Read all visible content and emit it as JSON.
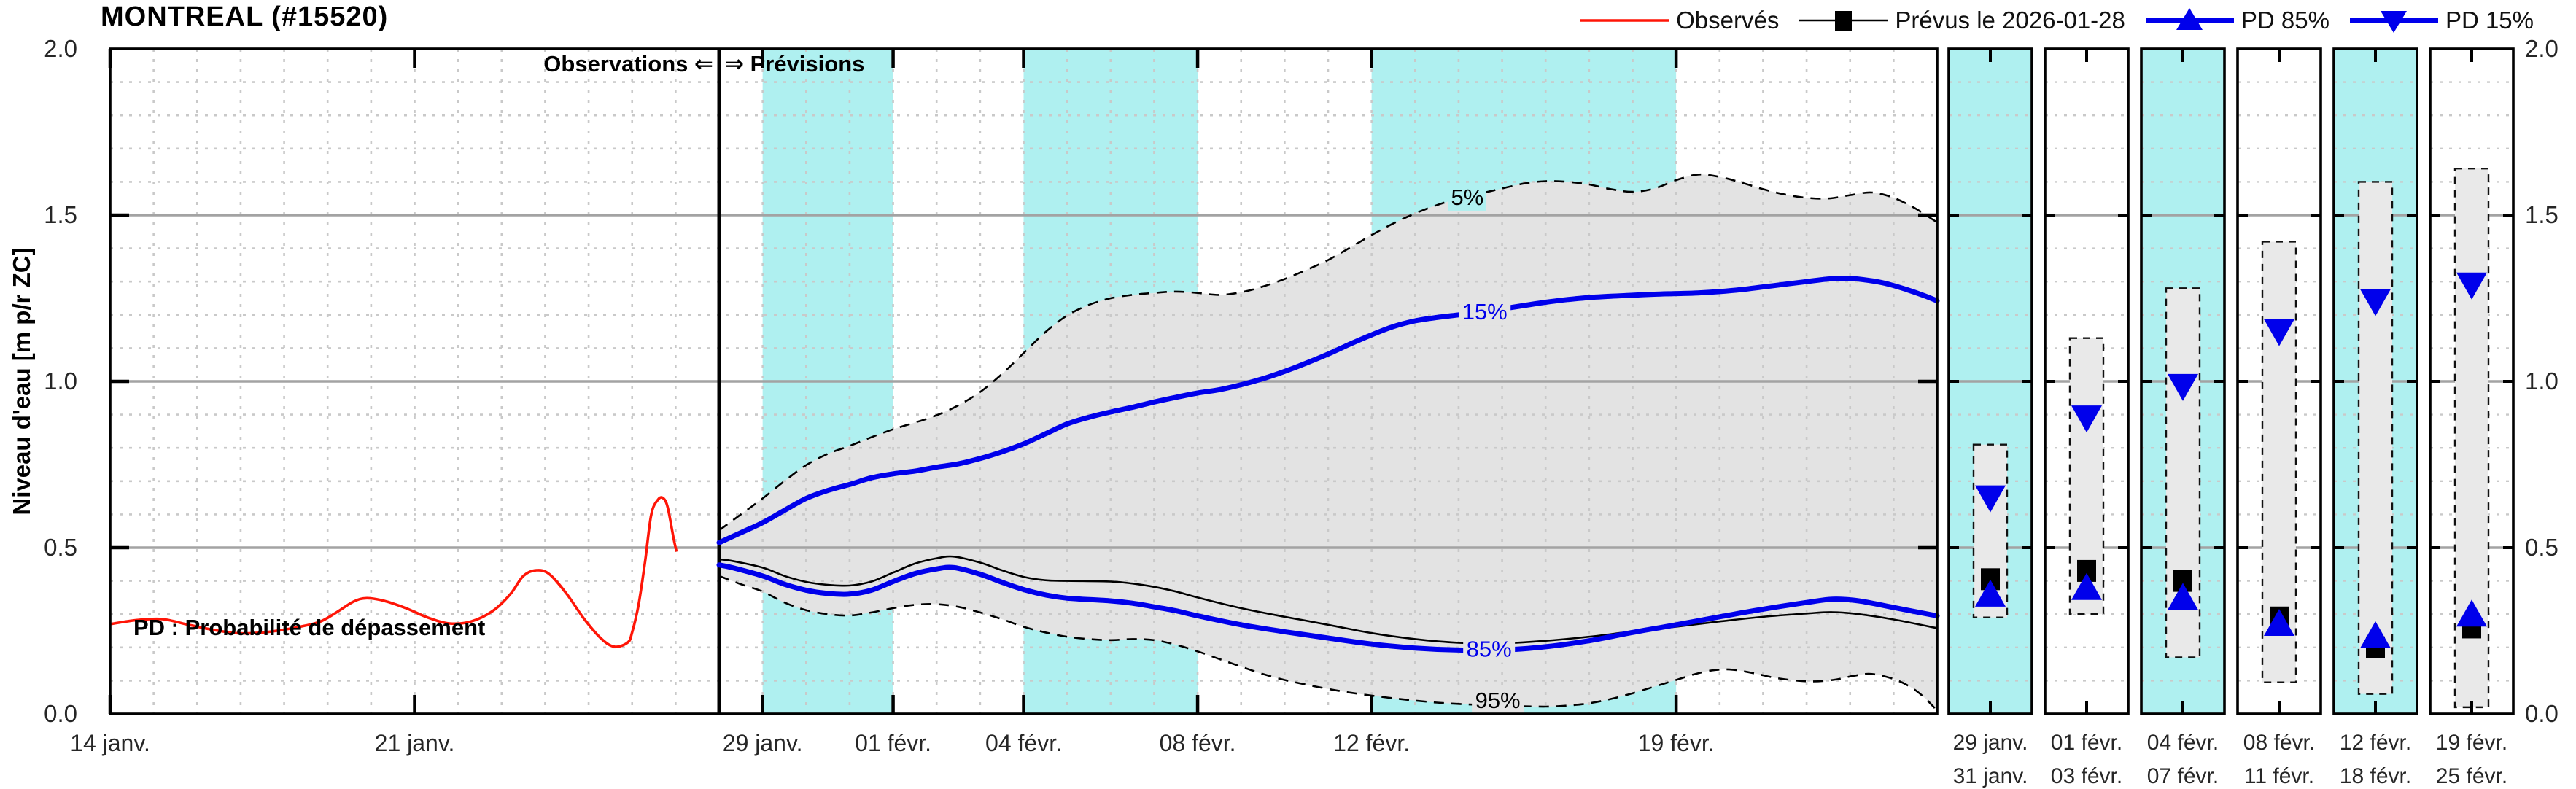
{
  "title": "MONTREAL (#15520)",
  "legend": [
    {
      "label": "Observés",
      "color": "#ff1507",
      "marker": "none"
    },
    {
      "label": "Prévus le 2026-01-28",
      "color": "#000000",
      "marker": "square"
    },
    {
      "label": "PD 85%",
      "color": "#0000eb",
      "marker": "triangle-up"
    },
    {
      "label": "PD 15%",
      "color": "#0000eb",
      "marker": "triangle-down"
    }
  ],
  "annotations": {
    "observations": "Observations ⇐",
    "previsions": "⇒ Prévisions",
    "pd_note": "PD : Probabilité de dépassement"
  },
  "colors": {
    "observed": "#ff1507",
    "forecast_blue": "#0000eb",
    "median": "#000000",
    "band_fill": "#e3e3e3",
    "cyan": "#aff0f0",
    "box_fill": "#e9e9e9",
    "grid_major": "#a3a3a3",
    "grid_minor": "#c9c9c9",
    "frame": "#000000",
    "text": "#262626"
  },
  "chart_data": {
    "type": "line",
    "title": "MONTREAL (#15520)",
    "xlabel": "",
    "ylabel": "Niveau d'eau [m p/r ZC]",
    "ylim": [
      0.0,
      2.0
    ],
    "y_major_ticks": [
      0.0,
      0.5,
      1.0,
      1.5,
      2.0
    ],
    "y_tick_labels": [
      "0.0",
      "0.5",
      "1.0",
      "1.5",
      "2.0"
    ],
    "y_minor_step": 0.1,
    "x_unit": "days since 14 janv.",
    "x_range_days": [
      0,
      42
    ],
    "divider_day": 14,
    "x_ticks": [
      {
        "day": 0,
        "label": "14 janv."
      },
      {
        "day": 7,
        "label": "21 janv."
      },
      {
        "day": 15,
        "label": "29 janv."
      },
      {
        "day": 18,
        "label": "01 févr."
      },
      {
        "day": 21,
        "label": "04 févr."
      },
      {
        "day": 25,
        "label": "08 févr."
      },
      {
        "day": 29,
        "label": "12 févr."
      },
      {
        "day": 36,
        "label": "19 févr."
      }
    ],
    "cyan_bands_days": [
      [
        15,
        18
      ],
      [
        21,
        25
      ],
      [
        29,
        36
      ]
    ],
    "inline_labels": [
      {
        "text": "5%",
        "day": 31.2,
        "value": 1.555,
        "color": "#000000",
        "bg": "#aff0f0"
      },
      {
        "text": "15%",
        "day": 31.6,
        "value": 1.21,
        "color": "#0000eb",
        "bg": "#e3e3e3"
      },
      {
        "text": "85%",
        "day": 31.7,
        "value": 0.196,
        "color": "#0000eb",
        "bg": "#e3e3e3"
      },
      {
        "text": "95%",
        "day": 31.9,
        "value": 0.042,
        "color": "#000000",
        "bg": "#e3e3e3"
      }
    ],
    "series": {
      "observed": [
        [
          0,
          0.27
        ],
        [
          0.6,
          0.282
        ],
        [
          1.2,
          0.285
        ],
        [
          1.8,
          0.268
        ],
        [
          2.4,
          0.252
        ],
        [
          3.0,
          0.242
        ],
        [
          3.6,
          0.246
        ],
        [
          4.2,
          0.258
        ],
        [
          4.8,
          0.276
        ],
        [
          5.2,
          0.305
        ],
        [
          5.6,
          0.338
        ],
        [
          5.9,
          0.348
        ],
        [
          6.3,
          0.34
        ],
        [
          6.8,
          0.318
        ],
        [
          7.3,
          0.29
        ],
        [
          7.8,
          0.272
        ],
        [
          8.3,
          0.278
        ],
        [
          8.8,
          0.31
        ],
        [
          9.2,
          0.36
        ],
        [
          9.5,
          0.415
        ],
        [
          9.8,
          0.432
        ],
        [
          10.1,
          0.42
        ],
        [
          10.5,
          0.36
        ],
        [
          10.9,
          0.285
        ],
        [
          11.3,
          0.225
        ],
        [
          11.6,
          0.202
        ],
        [
          11.9,
          0.215
        ],
        [
          12.0,
          0.245
        ],
        [
          12.15,
          0.33
        ],
        [
          12.3,
          0.46
        ],
        [
          12.44,
          0.6
        ],
        [
          12.6,
          0.645
        ],
        [
          12.72,
          0.648
        ],
        [
          12.82,
          0.62
        ],
        [
          12.95,
          0.53
        ],
        [
          13.02,
          0.488
        ]
      ],
      "forecast_median": [
        [
          14,
          0.465
        ],
        [
          14.3,
          0.46
        ],
        [
          15,
          0.44
        ],
        [
          15.5,
          0.415
        ],
        [
          16,
          0.397
        ],
        [
          16.5,
          0.388
        ],
        [
          17,
          0.386
        ],
        [
          17.5,
          0.398
        ],
        [
          18,
          0.425
        ],
        [
          18.5,
          0.452
        ],
        [
          19,
          0.468
        ],
        [
          19.4,
          0.473
        ],
        [
          20,
          0.455
        ],
        [
          20.5,
          0.432
        ],
        [
          21,
          0.412
        ],
        [
          21.5,
          0.402
        ],
        [
          22,
          0.4
        ],
        [
          23,
          0.398
        ],
        [
          23.5,
          0.392
        ],
        [
          24,
          0.382
        ],
        [
          24.5,
          0.368
        ],
        [
          25,
          0.35
        ],
        [
          26,
          0.318
        ],
        [
          27,
          0.292
        ],
        [
          28,
          0.268
        ],
        [
          29,
          0.243
        ],
        [
          30,
          0.225
        ],
        [
          31,
          0.214
        ],
        [
          32,
          0.212
        ],
        [
          33,
          0.22
        ],
        [
          34,
          0.232
        ],
        [
          35,
          0.248
        ],
        [
          36,
          0.262
        ],
        [
          37,
          0.278
        ],
        [
          38,
          0.292
        ],
        [
          39,
          0.302
        ],
        [
          39.6,
          0.306
        ],
        [
          40.2,
          0.3
        ],
        [
          41,
          0.284
        ],
        [
          42,
          0.258
        ]
      ],
      "p5": [
        [
          14,
          0.552
        ],
        [
          14.5,
          0.6
        ],
        [
          15,
          0.648
        ],
        [
          15.5,
          0.7
        ],
        [
          16,
          0.748
        ],
        [
          16.5,
          0.782
        ],
        [
          17,
          0.806
        ],
        [
          17.5,
          0.832
        ],
        [
          18,
          0.856
        ],
        [
          18.5,
          0.876
        ],
        [
          19,
          0.898
        ],
        [
          19.5,
          0.928
        ],
        [
          20,
          0.968
        ],
        [
          20.5,
          1.022
        ],
        [
          21,
          1.085
        ],
        [
          21.5,
          1.148
        ],
        [
          22,
          1.198
        ],
        [
          22.5,
          1.23
        ],
        [
          23,
          1.25
        ],
        [
          23.5,
          1.26
        ],
        [
          24,
          1.266
        ],
        [
          24.5,
          1.27
        ],
        [
          25,
          1.266
        ],
        [
          25.5,
          1.26
        ],
        [
          26,
          1.268
        ],
        [
          26.5,
          1.285
        ],
        [
          27,
          1.308
        ],
        [
          27.5,
          1.335
        ],
        [
          28,
          1.365
        ],
        [
          28.5,
          1.402
        ],
        [
          29,
          1.44
        ],
        [
          29.5,
          1.475
        ],
        [
          30,
          1.505
        ],
        [
          30.5,
          1.53
        ],
        [
          31,
          1.55
        ],
        [
          31.5,
          1.565
        ],
        [
          32,
          1.58
        ],
        [
          32.5,
          1.595
        ],
        [
          33,
          1.602
        ],
        [
          33.5,
          1.6
        ],
        [
          34,
          1.592
        ],
        [
          34.5,
          1.578
        ],
        [
          35,
          1.57
        ],
        [
          35.5,
          1.58
        ],
        [
          36,
          1.605
        ],
        [
          36.5,
          1.622
        ],
        [
          37,
          1.615
        ],
        [
          37.5,
          1.598
        ],
        [
          38,
          1.578
        ],
        [
          38.5,
          1.562
        ],
        [
          39,
          1.552
        ],
        [
          39.5,
          1.55
        ],
        [
          40,
          1.56
        ],
        [
          40.5,
          1.568
        ],
        [
          41,
          1.552
        ],
        [
          41.5,
          1.52
        ],
        [
          42,
          1.478
        ]
      ],
      "p15": [
        [
          14,
          0.515
        ],
        [
          14.5,
          0.545
        ],
        [
          15,
          0.575
        ],
        [
          15.5,
          0.612
        ],
        [
          16,
          0.648
        ],
        [
          16.5,
          0.672
        ],
        [
          17,
          0.69
        ],
        [
          17.5,
          0.71
        ],
        [
          18,
          0.722
        ],
        [
          18.5,
          0.73
        ],
        [
          19,
          0.742
        ],
        [
          19.5,
          0.752
        ],
        [
          20,
          0.768
        ],
        [
          20.5,
          0.788
        ],
        [
          21,
          0.812
        ],
        [
          21.5,
          0.842
        ],
        [
          22,
          0.872
        ],
        [
          22.5,
          0.892
        ],
        [
          23,
          0.908
        ],
        [
          23.5,
          0.922
        ],
        [
          24,
          0.938
        ],
        [
          24.5,
          0.952
        ],
        [
          25,
          0.965
        ],
        [
          25.5,
          0.975
        ],
        [
          26,
          0.99
        ],
        [
          26.5,
          1.008
        ],
        [
          27,
          1.03
        ],
        [
          27.5,
          1.055
        ],
        [
          28,
          1.082
        ],
        [
          28.5,
          1.112
        ],
        [
          29,
          1.14
        ],
        [
          29.5,
          1.165
        ],
        [
          30,
          1.182
        ],
        [
          30.5,
          1.192
        ],
        [
          31,
          1.2
        ],
        [
          31.5,
          1.208
        ],
        [
          32,
          1.218
        ],
        [
          32.5,
          1.228
        ],
        [
          33,
          1.238
        ],
        [
          33.5,
          1.246
        ],
        [
          34,
          1.252
        ],
        [
          34.5,
          1.256
        ],
        [
          35,
          1.259
        ],
        [
          35.5,
          1.262
        ],
        [
          36,
          1.264
        ],
        [
          36.5,
          1.266
        ],
        [
          37,
          1.27
        ],
        [
          37.5,
          1.276
        ],
        [
          38,
          1.284
        ],
        [
          38.5,
          1.292
        ],
        [
          39,
          1.3
        ],
        [
          39.5,
          1.308
        ],
        [
          39.9,
          1.31
        ],
        [
          40.3,
          1.306
        ],
        [
          40.8,
          1.295
        ],
        [
          41.3,
          1.276
        ],
        [
          41.7,
          1.258
        ],
        [
          42,
          1.242
        ]
      ],
      "p85": [
        [
          14,
          0.448
        ],
        [
          14.3,
          0.44
        ],
        [
          15,
          0.415
        ],
        [
          15.5,
          0.39
        ],
        [
          16,
          0.372
        ],
        [
          16.5,
          0.362
        ],
        [
          17,
          0.36
        ],
        [
          17.5,
          0.372
        ],
        [
          18,
          0.398
        ],
        [
          18.5,
          0.422
        ],
        [
          19,
          0.436
        ],
        [
          19.4,
          0.44
        ],
        [
          20,
          0.42
        ],
        [
          20.5,
          0.396
        ],
        [
          21,
          0.374
        ],
        [
          21.5,
          0.358
        ],
        [
          22,
          0.348
        ],
        [
          23,
          0.34
        ],
        [
          23.5,
          0.333
        ],
        [
          24,
          0.322
        ],
        [
          24.5,
          0.31
        ],
        [
          25,
          0.295
        ],
        [
          26,
          0.268
        ],
        [
          27,
          0.247
        ],
        [
          28,
          0.228
        ],
        [
          29,
          0.21
        ],
        [
          30,
          0.198
        ],
        [
          31,
          0.192
        ],
        [
          32,
          0.192
        ],
        [
          33,
          0.202
        ],
        [
          34,
          0.22
        ],
        [
          35,
          0.245
        ],
        [
          36,
          0.268
        ],
        [
          37,
          0.292
        ],
        [
          38,
          0.315
        ],
        [
          39,
          0.335
        ],
        [
          39.6,
          0.345
        ],
        [
          40.2,
          0.34
        ],
        [
          41,
          0.32
        ],
        [
          42,
          0.295
        ]
      ],
      "p95": [
        [
          14,
          0.415
        ],
        [
          14.5,
          0.39
        ],
        [
          15,
          0.368
        ],
        [
          15.5,
          0.335
        ],
        [
          16,
          0.312
        ],
        [
          16.5,
          0.3
        ],
        [
          17,
          0.296
        ],
        [
          17.5,
          0.305
        ],
        [
          18,
          0.318
        ],
        [
          18.5,
          0.328
        ],
        [
          19,
          0.33
        ],
        [
          19.5,
          0.322
        ],
        [
          20,
          0.305
        ],
        [
          20.5,
          0.285
        ],
        [
          21,
          0.262
        ],
        [
          21.5,
          0.245
        ],
        [
          22,
          0.232
        ],
        [
          22.5,
          0.225
        ],
        [
          23,
          0.222
        ],
        [
          23.5,
          0.225
        ],
        [
          24,
          0.222
        ],
        [
          24.5,
          0.208
        ],
        [
          25,
          0.188
        ],
        [
          25.5,
          0.165
        ],
        [
          26,
          0.142
        ],
        [
          26.5,
          0.12
        ],
        [
          27,
          0.102
        ],
        [
          27.5,
          0.088
        ],
        [
          28,
          0.075
        ],
        [
          28.5,
          0.064
        ],
        [
          29,
          0.055
        ],
        [
          29.5,
          0.047
        ],
        [
          30,
          0.04
        ],
        [
          30.5,
          0.034
        ],
        [
          31,
          0.03
        ],
        [
          31.5,
          0.027
        ],
        [
          32,
          0.025
        ],
        [
          32.5,
          0.023
        ],
        [
          33,
          0.022
        ],
        [
          33.5,
          0.025
        ],
        [
          34,
          0.032
        ],
        [
          34.5,
          0.045
        ],
        [
          35,
          0.062
        ],
        [
          35.5,
          0.082
        ],
        [
          36,
          0.102
        ],
        [
          36.5,
          0.122
        ],
        [
          36.9,
          0.132
        ],
        [
          37.3,
          0.133
        ],
        [
          37.8,
          0.122
        ],
        [
          38.3,
          0.108
        ],
        [
          39,
          0.098
        ],
        [
          39.6,
          0.102
        ],
        [
          40.1,
          0.115
        ],
        [
          40.5,
          0.12
        ],
        [
          41,
          0.105
        ],
        [
          41.4,
          0.08
        ],
        [
          41.7,
          0.05
        ],
        [
          42,
          0.01
        ]
      ]
    },
    "panels": [
      {
        "bg": "#aff0f0",
        "date_start": "29 janv.",
        "date_end": "31 janv.",
        "box": [
          0.29,
          0.81
        ],
        "pd15": 0.65,
        "prevus": 0.405,
        "pd85": 0.36
      },
      {
        "bg": "#ffffff",
        "date_start": "01 févr.",
        "date_end": "03 févr.",
        "box": [
          0.3,
          1.13
        ],
        "pd15": 0.89,
        "prevus": 0.43,
        "pd85": 0.38
      },
      {
        "bg": "#aff0f0",
        "date_start": "04 févr.",
        "date_end": "07 févr.",
        "box": [
          0.17,
          1.28
        ],
        "pd15": 0.985,
        "prevus": 0.4,
        "pd85": 0.35
      },
      {
        "bg": "#ffffff",
        "date_start": "08 févr.",
        "date_end": "11 févr.",
        "box": [
          0.095,
          1.42
        ],
        "pd15": 1.15,
        "prevus": 0.29,
        "pd85": 0.272
      },
      {
        "bg": "#aff0f0",
        "date_start": "12 févr.",
        "date_end": "18 févr.",
        "box": [
          0.06,
          1.6
        ],
        "pd15": 1.24,
        "prevus": 0.2,
        "pd85": 0.235
      },
      {
        "bg": "#ffffff",
        "date_start": "19 févr.",
        "date_end": "25 févr.",
        "box": [
          0.02,
          1.64
        ],
        "pd15": 1.29,
        "prevus": 0.26,
        "pd85": 0.3
      }
    ],
    "legend_position": "top-right",
    "grid": true
  }
}
